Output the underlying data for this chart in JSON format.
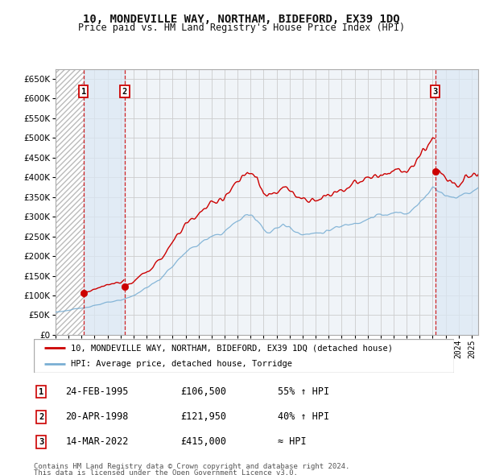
{
  "title": "10, MONDEVILLE WAY, NORTHAM, BIDEFORD, EX39 1DQ",
  "subtitle": "Price paid vs. HM Land Registry's House Price Index (HPI)",
  "xlim": [
    1993.0,
    2025.5
  ],
  "ylim": [
    0,
    675000
  ],
  "yticks": [
    0,
    50000,
    100000,
    150000,
    200000,
    250000,
    300000,
    350000,
    400000,
    450000,
    500000,
    550000,
    600000,
    650000
  ],
  "ytick_labels": [
    "£0",
    "£50K",
    "£100K",
    "£150K",
    "£200K",
    "£250K",
    "£300K",
    "£350K",
    "£400K",
    "£450K",
    "£500K",
    "£550K",
    "£600K",
    "£650K"
  ],
  "transactions": [
    {
      "num": 1,
      "date": 1995.15,
      "price": 106500,
      "label": "24-FEB-1995",
      "price_str": "£106,500",
      "hpi_str": "55% ↑ HPI"
    },
    {
      "num": 2,
      "date": 1998.31,
      "price": 121950,
      "label": "20-APR-1998",
      "price_str": "£121,950",
      "hpi_str": "40% ↑ HPI"
    },
    {
      "num": 3,
      "date": 2022.2,
      "price": 415000,
      "label": "14-MAR-2022",
      "price_str": "£415,000",
      "hpi_str": "≈ HPI"
    }
  ],
  "legend_property": "10, MONDEVILLE WAY, NORTHAM, BIDEFORD, EX39 1DQ (detached house)",
  "legend_hpi": "HPI: Average price, detached house, Torridge",
  "footer1": "Contains HM Land Registry data © Crown copyright and database right 2024.",
  "footer2": "This data is licensed under the Open Government Licence v3.0.",
  "red_color": "#cc0000",
  "blue_color": "#7aafd4",
  "grid_color": "#cccccc",
  "bg_color": "#ffffff",
  "plot_bg": "#f0f4f8",
  "shade_color": "#dce8f5"
}
